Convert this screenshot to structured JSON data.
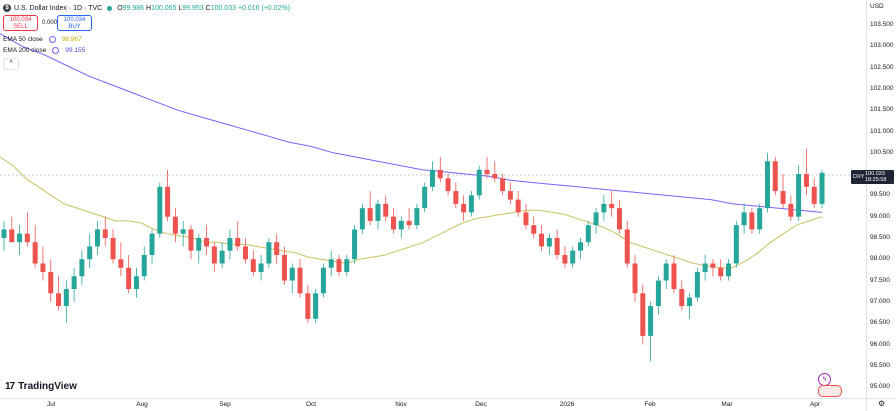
{
  "header": {
    "symbol_badge": "$",
    "title": "U.S. Dollar Index · 1D · TVC",
    "ohlc": {
      "open_label": "O",
      "open": "99.986",
      "high_label": "H",
      "high": "100.065",
      "low_label": "L",
      "low": "99.953",
      "close_label": "C",
      "close": "100.033",
      "change": "+0.016 (+0.02%)"
    }
  },
  "trade": {
    "sell_price": "100.034",
    "sell_label": "SELL",
    "spread": "0.000",
    "buy_price": "100.034",
    "buy_label": "BUY"
  },
  "indicators": [
    {
      "label": "EMA 50 close",
      "value": "98.967",
      "color": "#c9c264"
    },
    {
      "label": "EMA 200 close",
      "value": "99.155",
      "color": "#7b61ff"
    }
  ],
  "collapse_glyph": "^",
  "price_axis": {
    "currency": "USD",
    "ticks": [
      "103.500",
      "103.000",
      "102.500",
      "102.000",
      "101.500",
      "101.000",
      "100.500",
      "100.000",
      "99.500",
      "99.000",
      "98.500",
      "98.000",
      "97.500",
      "97.000",
      "96.500",
      "96.000",
      "95.500",
      "95.000"
    ]
  },
  "time_axis": {
    "ticks": [
      "Jul",
      "Aug",
      "Sep",
      "Oct",
      "Nov",
      "Dec",
      "2026",
      "Feb",
      "Mar",
      "Apr"
    ]
  },
  "price_tag": {
    "symbol": "DXY",
    "price": "100.033",
    "countdown": "18:25:58"
  },
  "logo": {
    "mark": "17",
    "text": "TradingView"
  },
  "icons": {
    "settings": "gear-icon",
    "lightning": "lightning-icon"
  },
  "colors": {
    "up": "#26a69a",
    "down": "#ef5350",
    "ema50": "#c9c264",
    "ema200": "#7b61ff"
  },
  "chart_data": {
    "type": "candlestick",
    "ylim": [
      95.0,
      103.5
    ],
    "ema50": [
      100.4,
      100.2,
      99.9,
      99.7,
      99.5,
      99.3,
      99.2,
      99.1,
      99.0,
      98.9,
      98.9,
      98.85,
      98.7,
      98.6,
      98.55,
      98.5,
      98.4,
      98.4,
      98.35,
      98.35,
      98.3,
      98.25,
      98.2,
      98.15,
      98.05,
      98.0,
      97.95,
      97.9,
      98.0,
      98.05,
      98.1,
      98.2,
      98.3,
      98.4,
      98.55,
      98.7,
      98.85,
      98.95,
      99.0,
      99.05,
      99.1,
      99.15,
      99.15,
      99.1,
      99.05,
      98.95,
      98.85,
      98.75,
      98.6,
      98.4,
      98.3,
      98.2,
      98.1,
      98.0,
      97.9,
      97.85,
      97.8,
      97.8,
      97.95,
      98.15,
      98.4,
      98.6,
      98.8,
      98.9,
      99.0
    ],
    "ema200": [
      103.3,
      103.0,
      102.8,
      102.55,
      102.3,
      102.1,
      101.9,
      101.7,
      101.5,
      101.35,
      101.2,
      101.05,
      100.9,
      100.75,
      100.65,
      100.5,
      100.4,
      100.3,
      100.2,
      100.1,
      100.05,
      100.0,
      99.95,
      99.85,
      99.8,
      99.75,
      99.7,
      99.65,
      99.6,
      99.55,
      99.5,
      99.45,
      99.4,
      99.3,
      99.25,
      99.2,
      99.15,
      99.1
    ],
    "candles": [
      [
        98.5,
        98.9,
        98.2,
        98.7
      ],
      [
        98.7,
        99.0,
        98.4,
        98.4
      ],
      [
        98.4,
        98.8,
        98.1,
        98.6
      ],
      [
        98.6,
        99.1,
        98.3,
        98.4
      ],
      [
        98.4,
        98.8,
        97.8,
        97.9
      ],
      [
        97.9,
        98.3,
        97.5,
        97.7
      ],
      [
        97.7,
        98.0,
        97.0,
        97.2
      ],
      [
        97.2,
        97.6,
        96.8,
        96.9
      ],
      [
        96.9,
        97.5,
        96.5,
        97.3
      ],
      [
        97.3,
        97.8,
        97.0,
        97.6
      ],
      [
        97.6,
        98.2,
        97.4,
        98.0
      ],
      [
        98.0,
        98.6,
        97.8,
        98.3
      ],
      [
        98.3,
        98.9,
        98.1,
        98.7
      ],
      [
        98.7,
        99.0,
        98.3,
        98.5
      ],
      [
        98.5,
        98.7,
        97.9,
        98.0
      ],
      [
        98.0,
        98.4,
        97.6,
        97.8
      ],
      [
        97.8,
        98.1,
        97.2,
        97.3
      ],
      [
        97.3,
        97.8,
        97.1,
        97.6
      ],
      [
        97.6,
        98.3,
        97.5,
        98.1
      ],
      [
        98.1,
        98.7,
        97.9,
        98.6
      ],
      [
        98.6,
        99.8,
        98.5,
        99.7
      ],
      [
        99.7,
        100.1,
        98.9,
        99.0
      ],
      [
        99.0,
        99.2,
        98.4,
        98.6
      ],
      [
        98.6,
        98.9,
        98.3,
        98.7
      ],
      [
        98.7,
        98.8,
        98.0,
        98.2
      ],
      [
        98.2,
        98.6,
        97.9,
        98.5
      ],
      [
        98.5,
        98.8,
        98.1,
        98.3
      ],
      [
        98.3,
        98.4,
        97.7,
        97.9
      ],
      [
        97.9,
        98.4,
        97.8,
        98.2
      ],
      [
        98.2,
        98.7,
        98.0,
        98.5
      ],
      [
        98.5,
        98.9,
        98.2,
        98.3
      ],
      [
        98.3,
        98.5,
        97.9,
        98.0
      ],
      [
        98.0,
        98.2,
        97.6,
        97.7
      ],
      [
        97.7,
        98.1,
        97.5,
        97.9
      ],
      [
        97.9,
        98.5,
        97.8,
        98.4
      ],
      [
        98.4,
        98.6,
        97.9,
        98.1
      ],
      [
        98.1,
        98.3,
        97.4,
        97.5
      ],
      [
        97.5,
        97.9,
        97.2,
        97.8
      ],
      [
        97.8,
        98.0,
        97.1,
        97.2
      ],
      [
        97.2,
        97.4,
        96.5,
        96.6
      ],
      [
        96.6,
        97.3,
        96.5,
        97.2
      ],
      [
        97.2,
        97.9,
        97.1,
        97.8
      ],
      [
        97.8,
        98.2,
        97.6,
        98.0
      ],
      [
        98.0,
        98.1,
        97.6,
        97.7
      ],
      [
        97.7,
        98.1,
        97.6,
        98.0
      ],
      [
        98.0,
        98.8,
        97.9,
        98.7
      ],
      [
        98.7,
        99.3,
        98.6,
        99.2
      ],
      [
        99.2,
        99.6,
        98.8,
        98.9
      ],
      [
        98.9,
        99.4,
        98.7,
        99.3
      ],
      [
        99.3,
        99.5,
        98.9,
        99.0
      ],
      [
        99.0,
        99.2,
        98.6,
        98.7
      ],
      [
        98.7,
        99.0,
        98.5,
        98.9
      ],
      [
        98.9,
        99.2,
        98.7,
        98.8
      ],
      [
        98.8,
        99.3,
        98.7,
        99.2
      ],
      [
        99.2,
        99.8,
        99.1,
        99.7
      ],
      [
        99.7,
        100.3,
        99.6,
        100.1
      ],
      [
        100.1,
        100.4,
        99.8,
        99.9
      ],
      [
        99.9,
        100.0,
        99.5,
        99.6
      ],
      [
        99.6,
        99.8,
        99.2,
        99.3
      ],
      [
        99.3,
        99.5,
        98.9,
        99.1
      ],
      [
        99.1,
        99.6,
        99.0,
        99.5
      ],
      [
        99.5,
        100.2,
        99.4,
        100.1
      ],
      [
        100.1,
        100.4,
        99.9,
        100.0
      ],
      [
        100.0,
        100.3,
        99.8,
        99.9
      ],
      [
        99.9,
        100.0,
        99.5,
        99.6
      ],
      [
        99.6,
        99.8,
        99.3,
        99.4
      ],
      [
        99.4,
        99.6,
        99.0,
        99.1
      ],
      [
        99.1,
        99.3,
        98.7,
        98.8
      ],
      [
        98.8,
        99.0,
        98.5,
        98.6
      ],
      [
        98.6,
        98.8,
        98.2,
        98.3
      ],
      [
        98.3,
        98.6,
        98.1,
        98.5
      ],
      [
        98.5,
        98.7,
        98.0,
        98.1
      ],
      [
        98.1,
        98.3,
        97.8,
        97.9
      ],
      [
        97.9,
        98.3,
        97.8,
        98.2
      ],
      [
        98.2,
        98.5,
        98.0,
        98.4
      ],
      [
        98.4,
        98.9,
        98.3,
        98.8
      ],
      [
        98.8,
        99.2,
        98.6,
        99.1
      ],
      [
        99.1,
        99.5,
        98.9,
        99.3
      ],
      [
        99.3,
        99.6,
        99.0,
        99.2
      ],
      [
        99.2,
        99.4,
        98.6,
        98.7
      ],
      [
        98.7,
        98.9,
        97.8,
        97.9
      ],
      [
        97.9,
        98.1,
        97.0,
        97.2
      ],
      [
        97.2,
        97.4,
        96.0,
        96.2
      ],
      [
        96.2,
        97.0,
        95.6,
        96.9
      ],
      [
        96.9,
        97.6,
        96.7,
        97.5
      ],
      [
        97.5,
        98.0,
        97.3,
        97.9
      ],
      [
        97.9,
        98.1,
        97.2,
        97.3
      ],
      [
        97.3,
        97.5,
        96.8,
        96.9
      ],
      [
        96.9,
        97.2,
        96.6,
        97.1
      ],
      [
        97.1,
        97.8,
        97.0,
        97.7
      ],
      [
        97.7,
        98.1,
        97.5,
        97.9
      ],
      [
        97.9,
        98.0,
        97.6,
        97.8
      ],
      [
        97.8,
        98.0,
        97.5,
        97.6
      ],
      [
        97.6,
        98.0,
        97.5,
        97.9
      ],
      [
        97.9,
        98.9,
        97.8,
        98.8
      ],
      [
        98.8,
        99.3,
        98.6,
        99.1
      ],
      [
        99.1,
        99.2,
        98.6,
        98.7
      ],
      [
        98.7,
        99.3,
        98.6,
        99.2
      ],
      [
        99.2,
        100.5,
        99.1,
        100.3
      ],
      [
        100.3,
        100.4,
        99.5,
        99.6
      ],
      [
        99.6,
        100.0,
        99.2,
        99.3
      ],
      [
        99.3,
        99.5,
        98.9,
        99.0
      ],
      [
        99.0,
        100.2,
        98.9,
        100.0
      ],
      [
        100.0,
        100.6,
        99.5,
        99.7
      ],
      [
        99.7,
        99.9,
        99.2,
        99.3
      ],
      [
        99.3,
        100.1,
        99.2,
        100.03
      ]
    ]
  }
}
